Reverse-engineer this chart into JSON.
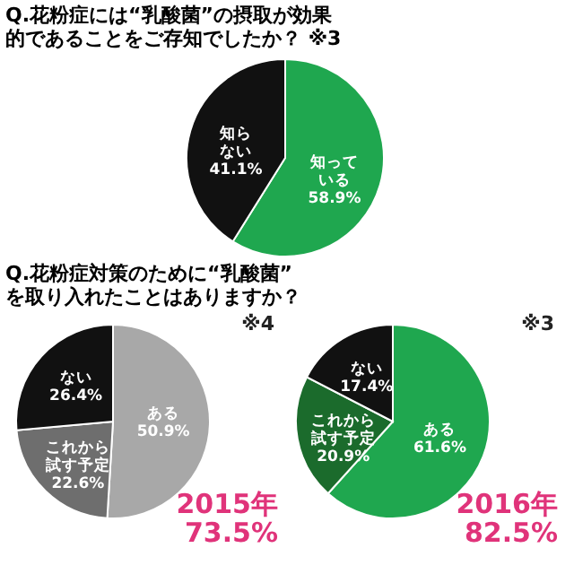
{
  "chart_data": [
    {
      "type": "pie",
      "title": "Q.花粉症には“乳酸菌”の摂取が効果的であることをご存知でしたか？ ※3",
      "categories": [
        "知っている",
        "知らない"
      ],
      "values": [
        58.9,
        41.1
      ],
      "colors": [
        "#1fa74f",
        "#111111"
      ],
      "value_labels": [
        "58.9%",
        "41.1%"
      ]
    },
    {
      "type": "pie",
      "title": "Q.花粉症対策のために“乳酸菌”を取り入れたことはありますか？",
      "categories": [
        "ある",
        "これから試す予定",
        "ない"
      ],
      "values": [
        50.9,
        22.6,
        26.4
      ],
      "colors": [
        "#a8a8a8",
        "#6e6e6e",
        "#111111"
      ],
      "value_labels": [
        "50.9%",
        "22.6%",
        "26.4%"
      ],
      "annotations": [
        "※4",
        "2015年\n73.5%"
      ]
    },
    {
      "type": "pie",
      "categories": [
        "ある",
        "これから試す予定",
        "ない"
      ],
      "values": [
        61.6,
        20.9,
        17.4
      ],
      "colors": [
        "#1fa74f",
        "#1b6b2c",
        "#111111"
      ],
      "value_labels": [
        "61.6%",
        "20.9%",
        "17.4%"
      ],
      "annotations": [
        "※3",
        "2016年\n82.5%"
      ]
    }
  ]
}
